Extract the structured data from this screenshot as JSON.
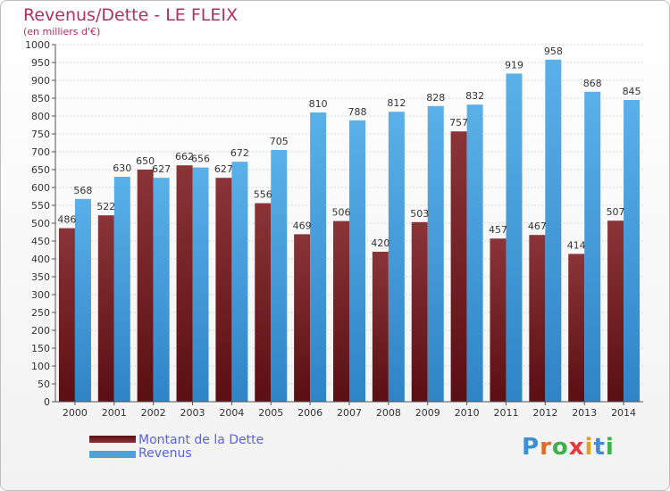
{
  "title": "Revenus/Dette - LE FLEIX",
  "subtitle": "(en milliers d'€)",
  "logo_text": "Proxiti",
  "chart_data": {
    "type": "bar",
    "categories": [
      "2000",
      "2001",
      "2002",
      "2003",
      "2004",
      "2005",
      "2006",
      "2007",
      "2008",
      "2009",
      "2010",
      "2011",
      "2012",
      "2013",
      "2014"
    ],
    "series": [
      {
        "name": "Montant de la Dette",
        "color": "#7b2a2e",
        "values": [
          486,
          522,
          650,
          662,
          627,
          556,
          469,
          506,
          420,
          503,
          757,
          457,
          467,
          414,
          507
        ]
      },
      {
        "name": "Revenus",
        "color": "#4aa3df",
        "values": [
          568,
          630,
          627,
          656,
          672,
          705,
          810,
          788,
          812,
          828,
          832,
          919,
          958,
          868,
          845
        ]
      }
    ],
    "ylim": [
      0,
      1000
    ],
    "ytick_step": 50,
    "grid": true,
    "legend_position": "bottom-left"
  }
}
